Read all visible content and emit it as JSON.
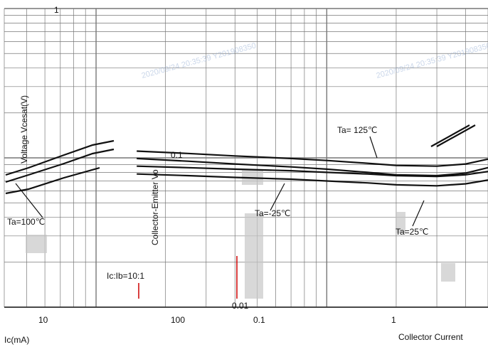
{
  "chart_data": {
    "type": "line",
    "title": "",
    "xlabel": "Ic(mA)",
    "xlabel_right": "Collector Current",
    "ylabel": "Voltage  Vcesat(V)",
    "ylabel_mid": "Collector-Emitter Vo",
    "condition": "Ic:Ib=10:1",
    "x_scale": "log",
    "y_scale": "log",
    "xlim": [
      4,
      500
    ],
    "ylim": [
      0.01,
      1
    ],
    "x_ticks": [
      "10",
      "100"
    ],
    "y_ticks": [
      "1",
      "0.1",
      "0.01"
    ],
    "x_ticks_secondary": [
      "0.1",
      "1"
    ],
    "grid": true,
    "legend": "none",
    "series": [
      {
        "name": "Ta= 125℃",
        "x": [
          15,
          25,
          40,
          70,
          100,
          150,
          200,
          300,
          400,
          500
        ],
        "y": [
          0.105,
          0.101,
          0.097,
          0.093,
          0.09,
          0.086,
          0.083,
          0.082,
          0.085,
          0.092
        ],
        "y_band": 0.006
      },
      {
        "name": "Ta=-25℃",
        "x": [
          15,
          25,
          40,
          70,
          100,
          150,
          200,
          300,
          400,
          500
        ],
        "y": [
          0.083,
          0.081,
          0.079,
          0.077,
          0.075,
          0.073,
          0.071,
          0.07,
          0.072,
          0.076
        ],
        "y_band": 0.005
      }
    ],
    "annotations": [
      "Ta= 125℃",
      "Ta=-25℃",
      "Ta=25℃",
      "Ta=100℃"
    ],
    "watermark": "2020/09/24 20:35:39 Y201908350"
  },
  "colors": {
    "line": "#111111",
    "grid": "#777777",
    "red_mark": "#cc0000",
    "gray_block": "#c8c8c8"
  }
}
